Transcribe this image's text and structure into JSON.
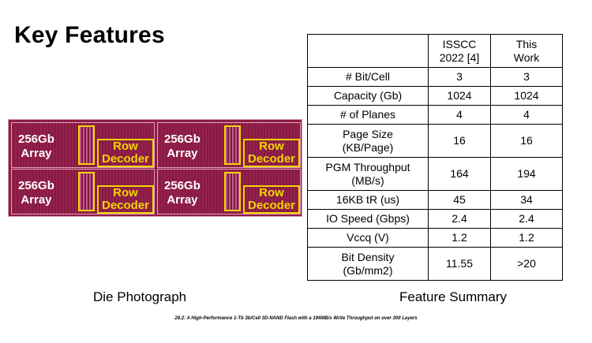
{
  "slide": {
    "title": "Key Features",
    "die_caption": "Die Photograph",
    "table_caption": "Feature Summary",
    "footer": "28.2: A High-Performance 1-Tb 3b/Cell 3D-NAND Flash with a 194MB/s Write Throughput on over 300 Layers"
  },
  "die": {
    "quadrants": [
      {
        "array_line1": "256Gb",
        "array_line2": "Array",
        "decoder_line1": "Row",
        "decoder_line2": "Decoder"
      },
      {
        "array_line1": "256Gb",
        "array_line2": "Array",
        "decoder_line1": "Row",
        "decoder_line2": "Decoder"
      },
      {
        "array_line1": "256Gb",
        "array_line2": "Array",
        "decoder_line1": "Row",
        "decoder_line2": "Decoder"
      },
      {
        "array_line1": "256Gb",
        "array_line2": "Array",
        "decoder_line1": "Row",
        "decoder_line2": "Decoder"
      }
    ]
  },
  "table": {
    "header": {
      "col1_line1": "ISSCC",
      "col1_line2": "2022 [4]",
      "col2_line1": "This",
      "col2_line2": "Work"
    },
    "rows": [
      {
        "label1": "# Bit/Cell",
        "label2": "",
        "v1": "3",
        "v2": "3"
      },
      {
        "label1": "Capacity (Gb)",
        "label2": "",
        "v1": "1024",
        "v2": "1024"
      },
      {
        "label1": "# of Planes",
        "label2": "",
        "v1": "4",
        "v2": "4"
      },
      {
        "label1": "Page Size",
        "label2": "(KB/Page)",
        "v1": "16",
        "v2": "16"
      },
      {
        "label1": "PGM Throughput",
        "label2": "(MB/s)",
        "v1": "164",
        "v2": "194"
      },
      {
        "label1": "16KB tR (us)",
        "label2": "",
        "v1": "45",
        "v2": "34"
      },
      {
        "label1": "IO Speed (Gbps)",
        "label2": "",
        "v1": "2.4",
        "v2": "2.4"
      },
      {
        "label1": "Vccq (V)",
        "label2": "",
        "v1": "1.2",
        "v2": "1.2"
      },
      {
        "label1": "Bit Density",
        "label2": "(Gb/mm2)",
        "v1": "11.55",
        "v2": ">20"
      }
    ]
  }
}
